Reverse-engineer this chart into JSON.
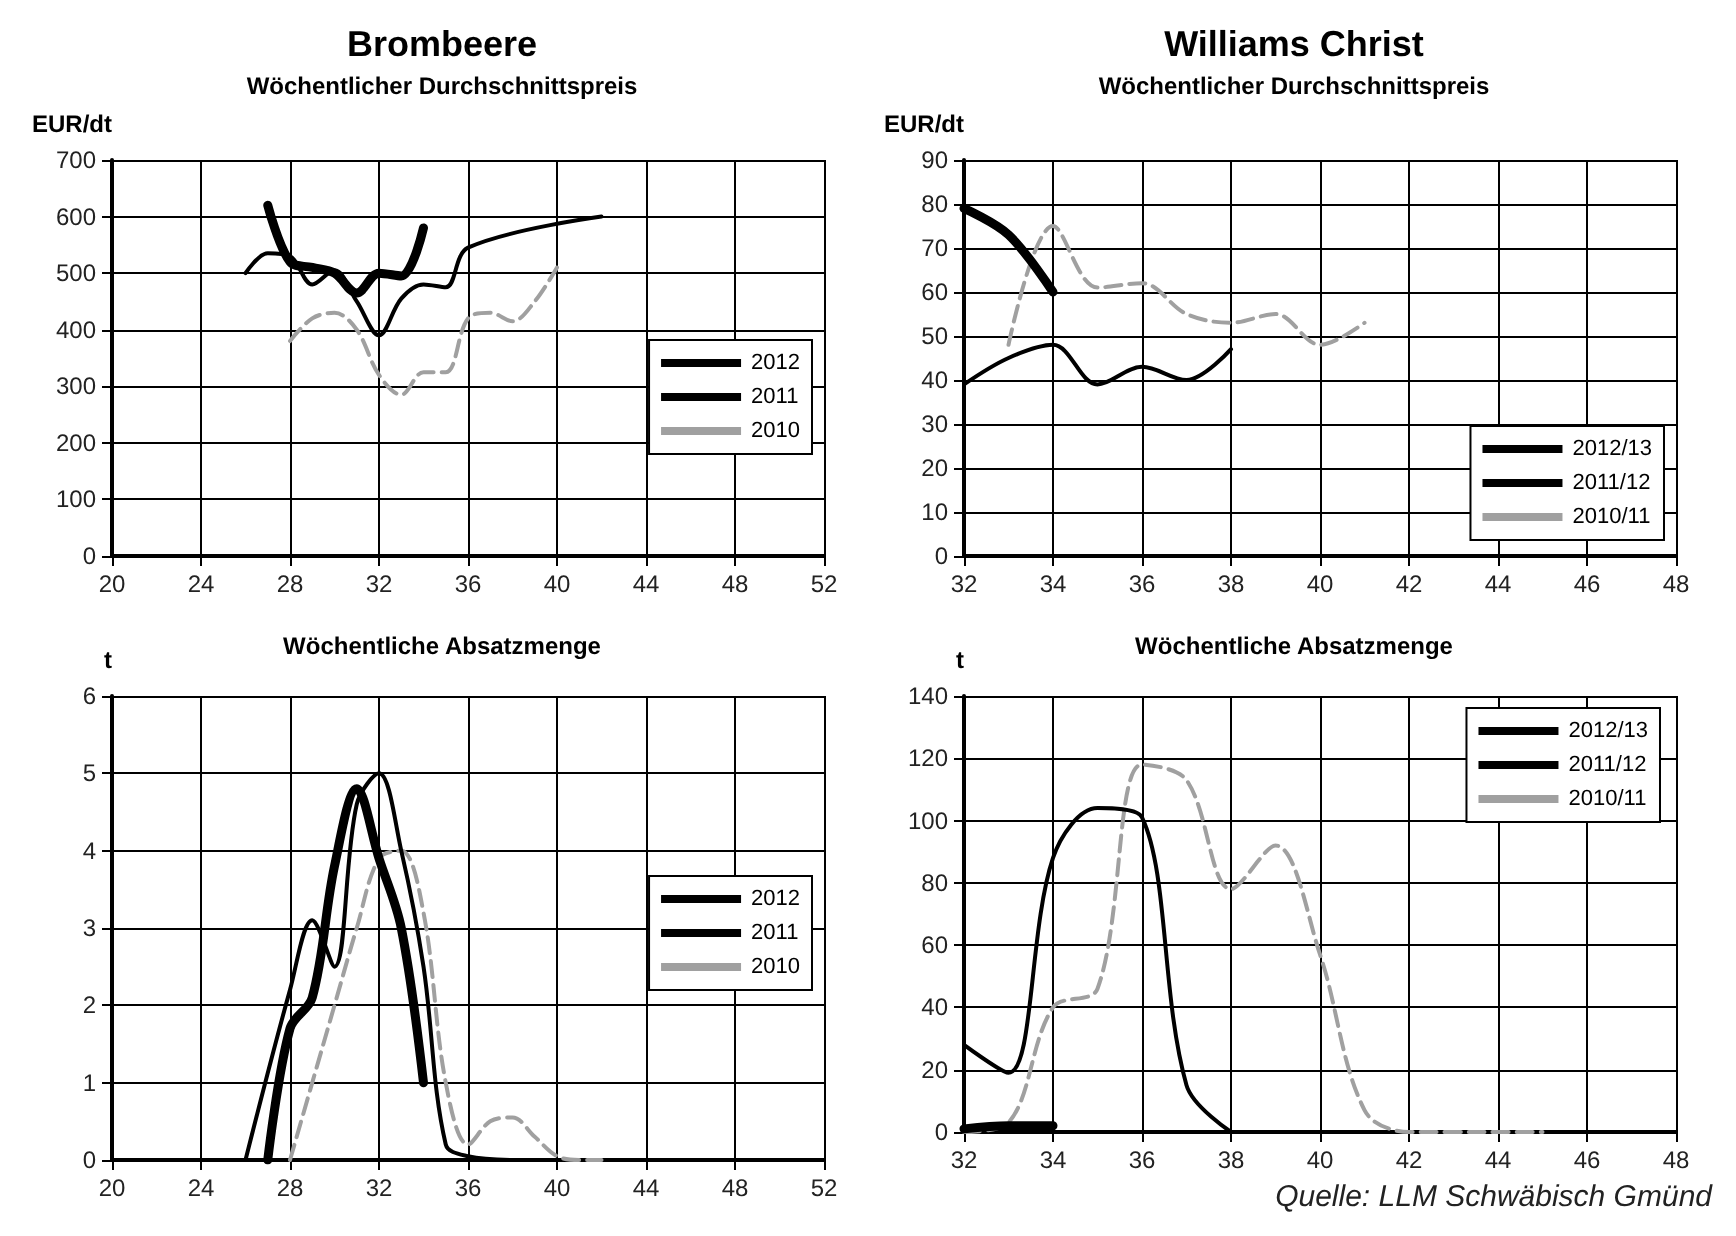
{
  "chart_data": [
    {
      "type": "line",
      "title": "Brombeere",
      "subtitle": "Wöchentlicher Durchschnittspreis",
      "ylabel": "EUR/dt",
      "xlim": [
        20,
        52
      ],
      "xticks": [
        20,
        24,
        28,
        32,
        36,
        40,
        44,
        48,
        52
      ],
      "ylim": [
        0,
        700
      ],
      "yticks": [
        0,
        100,
        200,
        300,
        400,
        500,
        600,
        700
      ],
      "grid": true,
      "legend": "right",
      "marker": "none",
      "series": [
        {
          "name": "2012",
          "color": "#000000",
          "line_style": "solid",
          "x": [
            27,
            28,
            29,
            30,
            31,
            32,
            33,
            34
          ],
          "values": [
            620,
            520,
            510,
            500,
            465,
            500,
            495,
            580
          ]
        },
        {
          "name": "2011",
          "color": "#000000",
          "line_style": "solid",
          "x": [
            26,
            27,
            28,
            29,
            30,
            31,
            32,
            33,
            34,
            35,
            36,
            42
          ],
          "values": [
            500,
            535,
            530,
            480,
            505,
            450,
            390,
            455,
            480,
            475,
            545,
            600
          ]
        },
        {
          "name": "2010",
          "color": "#a0a0a0",
          "line_style": "dashed",
          "x": [
            28,
            29,
            30,
            31,
            32,
            33,
            34,
            35,
            36,
            37,
            38,
            39,
            40
          ],
          "values": [
            380,
            420,
            430,
            400,
            320,
            285,
            325,
            325,
            420,
            430,
            415,
            450,
            510
          ]
        }
      ]
    },
    {
      "type": "line",
      "title": "Williams Christ",
      "subtitle": "Wöchentlicher Durchschnittspreis",
      "ylabel": "EUR/dt",
      "xlim": [
        32,
        48
      ],
      "xticks": [
        32,
        34,
        36,
        38,
        40,
        42,
        44,
        46,
        48
      ],
      "ylim": [
        0,
        90
      ],
      "yticks": [
        0,
        10,
        20,
        30,
        40,
        50,
        60,
        70,
        80,
        90
      ],
      "grid": true,
      "legend": "bottom right",
      "marker": "none",
      "series": [
        {
          "name": "2012/13",
          "color": "#000000",
          "line_style": "solid",
          "x": [
            32,
            33,
            34
          ],
          "values": [
            79,
            73,
            60
          ]
        },
        {
          "name": "2011/12",
          "color": "#000000",
          "line_style": "solid",
          "x": [
            32,
            33,
            34,
            35,
            36,
            37,
            38
          ],
          "values": [
            39,
            45,
            48,
            39,
            43,
            40,
            47
          ]
        },
        {
          "name": "2010/11",
          "color": "#a0a0a0",
          "line_style": "dashed",
          "x": [
            33,
            34,
            35,
            36,
            37,
            38,
            39,
            40,
            41
          ],
          "values": [
            48,
            75,
            61,
            62,
            55,
            53,
            55,
            48,
            53
          ]
        }
      ]
    },
    {
      "type": "line",
      "title": "Wöchentliche Absatzmenge",
      "ylabel": "t",
      "xlim": [
        20,
        52
      ],
      "xticks": [
        20,
        24,
        28,
        32,
        36,
        40,
        44,
        48,
        52
      ],
      "ylim": [
        0,
        6
      ],
      "yticks": [
        0,
        1,
        2,
        3,
        4,
        5,
        6
      ],
      "grid": true,
      "legend": "right",
      "marker": "none",
      "series": [
        {
          "name": "2012",
          "color": "#000000",
          "line_style": "solid",
          "x": [
            27,
            28,
            29,
            30,
            31,
            32,
            33,
            34
          ],
          "values": [
            0,
            1.7,
            2.1,
            3.8,
            4.8,
            3.9,
            3.0,
            1.0
          ]
        },
        {
          "name": "2011",
          "color": "#000000",
          "line_style": "solid",
          "x": [
            26,
            28,
            29,
            30,
            31,
            32,
            33,
            34,
            35,
            36,
            38
          ],
          "values": [
            0,
            2.2,
            3.1,
            2.5,
            4.6,
            5.0,
            4.0,
            2.5,
            0.2,
            0.05,
            0
          ]
        },
        {
          "name": "2010",
          "color": "#a0a0a0",
          "line_style": "dashed",
          "x": [
            28,
            29,
            30,
            31,
            32,
            33,
            34,
            35,
            36,
            37,
            38,
            39,
            40,
            41,
            42
          ],
          "values": [
            0,
            1.0,
            2.0,
            3.0,
            3.9,
            4.0,
            3.2,
            1.0,
            0.2,
            0.5,
            0.55,
            0.3,
            0.05,
            0,
            0
          ]
        }
      ]
    },
    {
      "type": "line",
      "title": "Wöchentliche Absatzmenge",
      "ylabel": "t",
      "xlim": [
        32,
        48
      ],
      "xticks": [
        32,
        34,
        36,
        38,
        40,
        42,
        44,
        46,
        48
      ],
      "ylim": [
        0,
        140
      ],
      "yticks": [
        0,
        20,
        40,
        60,
        80,
        100,
        120,
        140
      ],
      "grid": true,
      "legend": "top right",
      "marker": "none",
      "annotations": [
        "Quelle: LLM Schwäbisch Gmünd"
      ],
      "series": [
        {
          "name": "2012/13",
          "color": "#000000",
          "line_style": "solid",
          "x": [
            32,
            33,
            34
          ],
          "values": [
            1,
            2,
            2
          ]
        },
        {
          "name": "2011/12",
          "color": "#000000",
          "line_style": "solid",
          "x": [
            32,
            33,
            34,
            35,
            36,
            37,
            38
          ],
          "values": [
            28,
            19,
            88,
            104,
            101,
            15,
            0
          ]
        },
        {
          "name": "2010/11",
          "color": "#a0a0a0",
          "line_style": "dashed",
          "x": [
            32,
            33,
            34,
            35,
            36,
            37,
            38,
            39,
            40,
            41,
            42,
            43,
            44,
            45
          ],
          "values": [
            0,
            3,
            40,
            46,
            118,
            113,
            78,
            92,
            57,
            7,
            0,
            0,
            0,
            0
          ]
        }
      ]
    }
  ]
}
